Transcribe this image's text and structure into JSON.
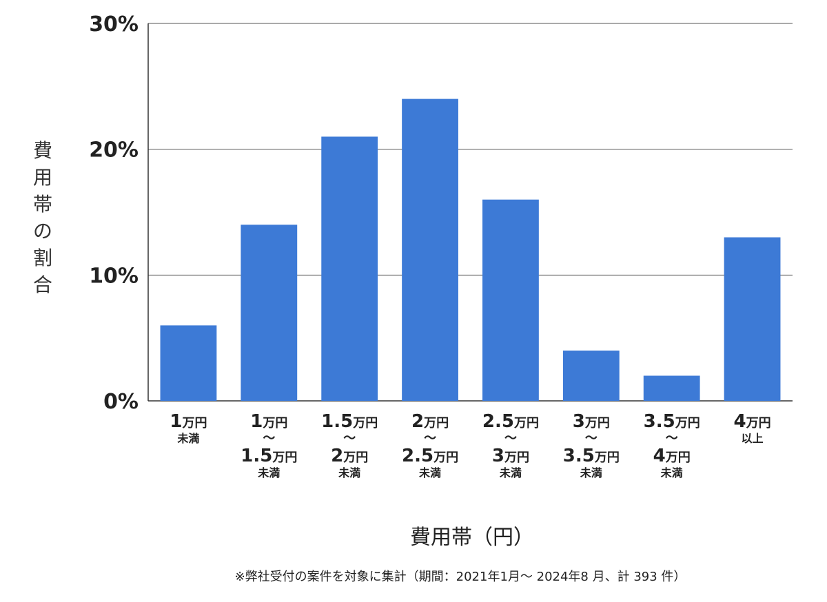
{
  "chart_data": {
    "type": "bar",
    "title": "",
    "xlabel": "費用帯（円）",
    "ylabel": "費用帯の割合",
    "yunit": "%",
    "ylim": [
      0,
      30
    ],
    "yticks": [
      "0%",
      "10%",
      "20%",
      "30%"
    ],
    "grid": true,
    "bar_color": "#3d7ad6",
    "categories": [
      {
        "lines": [
          [
            "1",
            "万円"
          ],
          [
            "",
            "未満"
          ]
        ]
      },
      {
        "lines": [
          [
            "1",
            "万円"
          ],
          [
            "",
            "〜"
          ],
          [
            "1.5",
            "万円"
          ],
          [
            "",
            "未満"
          ]
        ]
      },
      {
        "lines": [
          [
            "1.5",
            "万円"
          ],
          [
            "",
            "〜"
          ],
          [
            "2",
            "万円"
          ],
          [
            "",
            "未満"
          ]
        ]
      },
      {
        "lines": [
          [
            "2",
            "万円"
          ],
          [
            "",
            "〜"
          ],
          [
            "2.5",
            "万円"
          ],
          [
            "",
            "未満"
          ]
        ]
      },
      {
        "lines": [
          [
            "2.5",
            "万円"
          ],
          [
            "",
            "〜"
          ],
          [
            "3",
            "万円"
          ],
          [
            "",
            "未満"
          ]
        ]
      },
      {
        "lines": [
          [
            "3",
            "万円"
          ],
          [
            "",
            "〜"
          ],
          [
            "3.5",
            "万円"
          ],
          [
            "",
            "未満"
          ]
        ]
      },
      {
        "lines": [
          [
            "3.5",
            "万円"
          ],
          [
            "",
            "〜"
          ],
          [
            "4",
            "万円"
          ],
          [
            "",
            "未満"
          ]
        ]
      },
      {
        "lines": [
          [
            "4",
            "万円"
          ],
          [
            "",
            "以上"
          ]
        ]
      }
    ],
    "values": [
      6,
      14,
      21,
      24,
      16,
      4,
      2,
      13
    ]
  },
  "footnote": "※弊社受付の案件を対象に集計（期間：2021年1月〜 2024年8 月、計 393 件）"
}
